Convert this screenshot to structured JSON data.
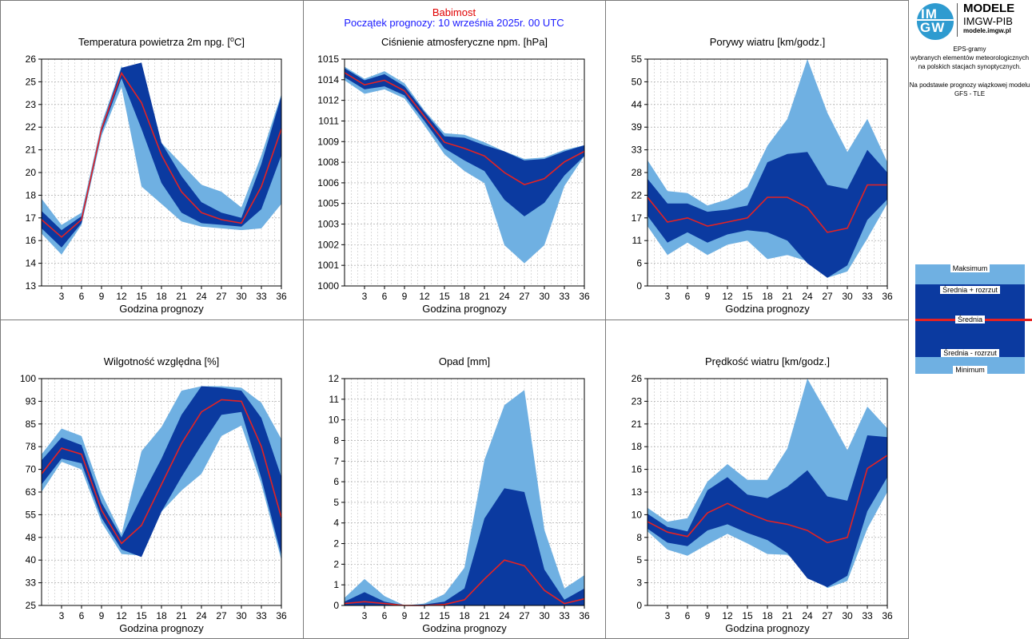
{
  "header": {
    "station": "Babimost",
    "forecast_start": "Początek prognozy: 10 września 2025r. 00 UTC"
  },
  "logo": {
    "line1": "MODELE",
    "line2": "IMGW-PIB",
    "url": "modele.imgw.pl",
    "mark_top": "IM",
    "mark_bottom": "GW"
  },
  "info": {
    "line1": "EPS-gramy",
    "line2": "wybranych elementów meteorologicznych",
    "line3": "na polskich stacjach  synoptycznych.",
    "line4": "Na podstawie prognozy wiązkowej modelu",
    "line5": "GFS - TLE"
  },
  "legend": {
    "max": "Maksimum",
    "mean_plus": "Średnia + rozrzut",
    "mean": "Średnia",
    "mean_minus": "Średnia - rozrzut",
    "min": "Minimum"
  },
  "colors": {
    "outer_band": "#6fb0e2",
    "inner_band": "#0b3aa0",
    "mean_line": "#e52222",
    "station": "#e00000",
    "forecast": "#1a1aff"
  },
  "chart_data": [
    {
      "type": "area",
      "title": "Temperatura powietrza 2m npg. [°C]",
      "xlabel": "Godzina prognozy",
      "x": [
        0,
        3,
        6,
        9,
        12,
        15,
        18,
        21,
        24,
        27,
        30,
        33,
        36
      ],
      "xticks": [
        3,
        6,
        9,
        12,
        15,
        18,
        21,
        24,
        27,
        30,
        33,
        36
      ],
      "ylim": [
        13,
        26
      ],
      "yticks": [
        "13",
        "14",
        "16",
        "17",
        "18",
        "20",
        "21",
        "22",
        "23",
        "25",
        "26"
      ],
      "series": [
        {
          "name": "Maksimum",
          "values": [
            18.0,
            16.5,
            17.2,
            22.3,
            25.6,
            23.0,
            21.2,
            20.0,
            18.8,
            18.4,
            17.5,
            20.5,
            24.0
          ]
        },
        {
          "name": "Średnia + rozrzut",
          "values": [
            17.3,
            16.2,
            17.0,
            22.1,
            25.5,
            25.8,
            21.2,
            19.3,
            17.8,
            17.2,
            16.9,
            20.0,
            23.9
          ]
        },
        {
          "name": "Średnia",
          "values": [
            16.8,
            15.8,
            16.8,
            22.0,
            25.2,
            23.5,
            20.5,
            18.4,
            17.2,
            16.8,
            16.6,
            18.7,
            22.0
          ]
        },
        {
          "name": "Średnia - rozrzut",
          "values": [
            16.3,
            15.2,
            16.6,
            21.8,
            24.9,
            22.0,
            18.9,
            17.2,
            16.6,
            16.5,
            16.4,
            17.4,
            20.5
          ]
        },
        {
          "name": "Minimum",
          "values": [
            16.0,
            14.8,
            16.5,
            21.6,
            24.4,
            18.7,
            17.7,
            16.7,
            16.4,
            16.3,
            16.2,
            16.3,
            17.7
          ]
        }
      ]
    },
    {
      "type": "area",
      "title": "Ciśnienie atmosferyczne npm. [hPa]",
      "xlabel": "Godzina prognozy",
      "x": [
        0,
        3,
        6,
        9,
        12,
        15,
        18,
        21,
        24,
        27,
        30,
        33,
        36
      ],
      "xticks": [
        3,
        6,
        9,
        12,
        15,
        18,
        21,
        24,
        27,
        30,
        33,
        36
      ],
      "ylim": [
        1000,
        1015
      ],
      "yticks": [
        "1000",
        "1001",
        "1002",
        "1003",
        "1005",
        "1006",
        "1008",
        "1009",
        "1011",
        "1012",
        "1014",
        "1015"
      ],
      "series": [
        {
          "name": "Maksimum",
          "values": [
            1014.5,
            1013.7,
            1014.2,
            1013.4,
            1011.6,
            1010.1,
            1010.0,
            1009.5,
            1008.9,
            1008.4,
            1008.5,
            1009.0,
            1009.3
          ]
        },
        {
          "name": "Średnia + rozrzut",
          "values": [
            1014.4,
            1013.6,
            1014.0,
            1013.2,
            1011.5,
            1009.9,
            1009.8,
            1009.3,
            1008.9,
            1008.3,
            1008.4,
            1008.9,
            1009.3
          ]
        },
        {
          "name": "Średnia",
          "values": [
            1014.1,
            1013.3,
            1013.6,
            1012.9,
            1011.2,
            1009.5,
            1009.1,
            1008.6,
            1007.5,
            1006.7,
            1007.1,
            1008.2,
            1008.9
          ]
        },
        {
          "name": "Średnia - rozrzut",
          "values": [
            1013.8,
            1013.0,
            1013.2,
            1012.6,
            1010.9,
            1009.1,
            1008.3,
            1007.6,
            1005.7,
            1004.6,
            1005.5,
            1007.3,
            1008.6
          ]
        },
        {
          "name": "Minimum",
          "values": [
            1013.6,
            1012.7,
            1013.0,
            1012.4,
            1010.6,
            1008.7,
            1007.6,
            1006.8,
            1002.7,
            1001.5,
            1002.7,
            1006.6,
            1008.6
          ]
        }
      ]
    },
    {
      "type": "area",
      "title": "Porywy wiatru [km/godz.]",
      "xlabel": "Godzina prognozy",
      "x": [
        0,
        3,
        6,
        9,
        12,
        15,
        18,
        21,
        24,
        27,
        30,
        33,
        36
      ],
      "xticks": [
        3,
        6,
        9,
        12,
        15,
        18,
        21,
        24,
        27,
        30,
        33,
        36
      ],
      "ylim": [
        0,
        55
      ],
      "yticks": [
        "0",
        "6",
        "11",
        "17",
        "22",
        "28",
        "33",
        "39",
        "44",
        "50",
        "55"
      ],
      "series": [
        {
          "name": "Maksimum",
          "values": [
            30.5,
            23.0,
            22.5,
            19.5,
            21.0,
            24.0,
            34.0,
            40.5,
            55.0,
            42.0,
            32.5,
            40.5,
            30.0
          ]
        },
        {
          "name": "Średnia + rozrzut",
          "values": [
            26.0,
            20.0,
            20.0,
            18.0,
            18.5,
            19.5,
            30.0,
            32.0,
            32.5,
            24.5,
            23.5,
            33.0,
            27.5
          ]
        },
        {
          "name": "Średnia",
          "values": [
            21.5,
            15.5,
            16.5,
            14.5,
            15.5,
            16.5,
            21.5,
            21.5,
            19.0,
            13.0,
            14.0,
            24.5,
            24.5
          ]
        },
        {
          "name": "Średnia - rozrzut",
          "values": [
            17.0,
            10.5,
            13.0,
            10.5,
            12.5,
            13.5,
            13.0,
            11.0,
            5.5,
            2.0,
            5.0,
            16.0,
            21.0
          ]
        },
        {
          "name": "Minimum",
          "values": [
            14.5,
            7.5,
            10.5,
            7.5,
            10.0,
            11.0,
            6.5,
            7.5,
            6.0,
            2.0,
            3.5,
            11.5,
            20.0
          ]
        }
      ]
    },
    {
      "type": "area",
      "title": "Wilgotność względna [%]",
      "xlabel": "Godzina prognozy",
      "x": [
        0,
        3,
        6,
        9,
        12,
        15,
        18,
        21,
        24,
        27,
        30,
        33,
        36
      ],
      "xticks": [
        3,
        6,
        9,
        12,
        15,
        18,
        21,
        24,
        27,
        30,
        33,
        36
      ],
      "ylim": [
        25,
        100
      ],
      "yticks": [
        "25",
        "33",
        "40",
        "48",
        "55",
        "63",
        "70",
        "78",
        "85",
        "93",
        "100"
      ],
      "series": [
        {
          "name": "Maksimum",
          "values": [
            75.0,
            83.5,
            81.0,
            62.0,
            48.5,
            76.0,
            84.0,
            96.0,
            97.5,
            97.5,
            97.0,
            92.0,
            80.0
          ]
        },
        {
          "name": "Średnia + rozrzut",
          "values": [
            73.0,
            80.5,
            78.0,
            59.0,
            47.5,
            61.0,
            73.5,
            88.0,
            97.5,
            97.0,
            96.0,
            87.0,
            67.5
          ]
        },
        {
          "name": "Średnia",
          "values": [
            68.5,
            77.0,
            75.0,
            56.5,
            45.5,
            51.5,
            65.0,
            78.5,
            89.0,
            93.0,
            92.5,
            77.5,
            54.0
          ]
        },
        {
          "name": "Średnia - rozrzut",
          "values": [
            65.0,
            73.5,
            72.0,
            54.0,
            43.5,
            41.0,
            56.0,
            67.5,
            78.0,
            88.0,
            89.0,
            67.0,
            41.5
          ]
        },
        {
          "name": "Minimum",
          "values": [
            62.5,
            72.5,
            70.0,
            52.5,
            42.0,
            41.5,
            56.0,
            63.0,
            68.5,
            81.0,
            84.5,
            65.0,
            40.0
          ]
        }
      ]
    },
    {
      "type": "area",
      "title": "Opad [mm]",
      "xlabel": "Godzina prognozy",
      "x": [
        0,
        3,
        6,
        9,
        12,
        15,
        18,
        21,
        24,
        27,
        30,
        33,
        36
      ],
      "xticks": [
        3,
        6,
        9,
        12,
        15,
        18,
        21,
        24,
        27,
        30,
        33,
        36
      ],
      "ylim": [
        0,
        12
      ],
      "yticks": [
        "0",
        "1",
        "2",
        "2",
        "4",
        "5",
        "6",
        "7",
        "8",
        "10",
        "11",
        "12"
      ],
      "series": [
        {
          "name": "Maksimum",
          "values": [
            0.4,
            1.4,
            0.5,
            0.0,
            0.1,
            0.6,
            2.0,
            7.7,
            10.6,
            11.4,
            4.0,
            0.9,
            1.6
          ]
        },
        {
          "name": "Średnia + rozrzut",
          "values": [
            0.2,
            0.7,
            0.2,
            0.0,
            0.05,
            0.2,
            0.9,
            4.6,
            6.2,
            6.0,
            1.9,
            0.3,
            0.9
          ]
        },
        {
          "name": "Średnia",
          "values": [
            0.1,
            0.2,
            0.1,
            0.0,
            0.0,
            0.05,
            0.3,
            1.4,
            2.4,
            2.1,
            0.8,
            0.1,
            0.35
          ]
        },
        {
          "name": "Średnia - rozrzut",
          "values": [
            0.0,
            0.0,
            0.0,
            0.0,
            0.0,
            0.0,
            0.0,
            0.0,
            0.0,
            0.0,
            0.0,
            0.0,
            0.0
          ]
        },
        {
          "name": "Minimum",
          "values": [
            0.0,
            0.0,
            0.0,
            0.0,
            0.0,
            0.0,
            0.0,
            0.0,
            0.0,
            0.0,
            0.0,
            0.0,
            0.0
          ]
        }
      ]
    },
    {
      "type": "area",
      "title": "Prędkość wiatru [km/godz.]",
      "xlabel": "Godzina prognozy",
      "x": [
        0,
        3,
        6,
        9,
        12,
        15,
        18,
        21,
        24,
        27,
        30,
        33,
        36
      ],
      "xticks": [
        3,
        6,
        9,
        12,
        15,
        18,
        21,
        24,
        27,
        30,
        33,
        36
      ],
      "ylim": [
        0,
        26
      ],
      "yticks": [
        "0",
        "3",
        "5",
        "8",
        "10",
        "13",
        "16",
        "18",
        "21",
        "23",
        "26"
      ],
      "series": [
        {
          "name": "Maksimum",
          "values": [
            11.2,
            9.6,
            10.0,
            14.2,
            16.2,
            14.4,
            14.4,
            18.0,
            26.0,
            22.0,
            17.8,
            22.8,
            20.3
          ]
        },
        {
          "name": "Średnia + rozrzut",
          "values": [
            10.5,
            9.0,
            8.5,
            13.2,
            14.7,
            12.7,
            12.3,
            13.6,
            15.5,
            12.5,
            12.0,
            19.5,
            19.3
          ]
        },
        {
          "name": "Średnia",
          "values": [
            9.6,
            8.4,
            7.9,
            10.6,
            11.7,
            10.6,
            9.7,
            9.3,
            8.6,
            7.2,
            7.8,
            15.7,
            17.2
          ]
        },
        {
          "name": "Średnia - rozrzut",
          "values": [
            8.8,
            7.2,
            6.8,
            8.6,
            9.3,
            8.3,
            7.5,
            6.0,
            3.1,
            2.1,
            3.4,
            10.8,
            14.7
          ]
        },
        {
          "name": "Minimum",
          "values": [
            8.5,
            6.4,
            5.7,
            7.0,
            8.2,
            7.1,
            5.9,
            5.8,
            4.0,
            2.0,
            2.8,
            8.8,
            13.0
          ]
        }
      ]
    }
  ]
}
